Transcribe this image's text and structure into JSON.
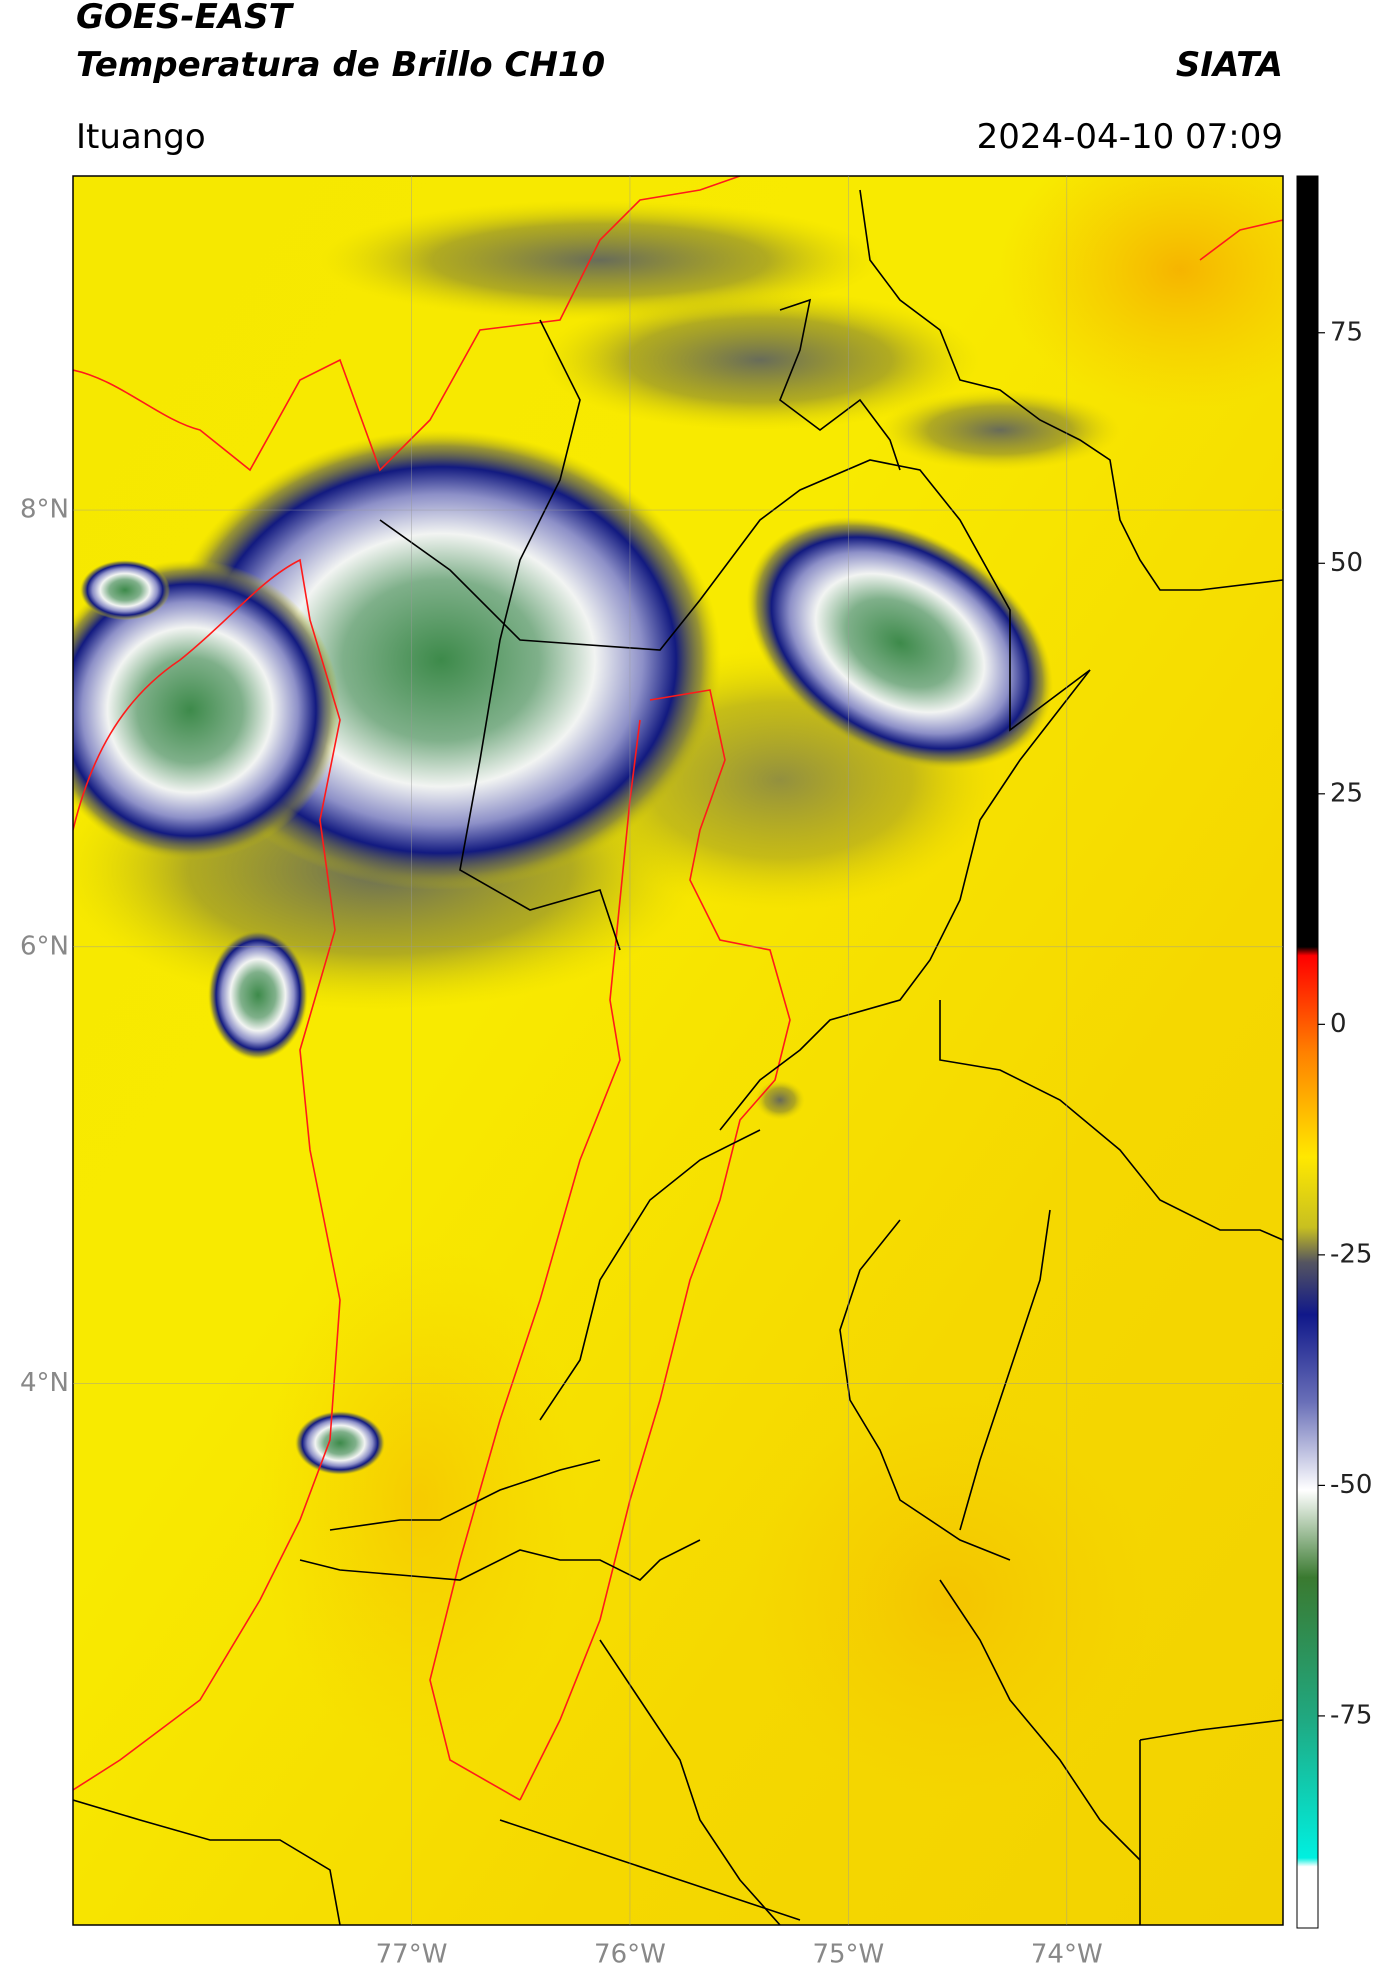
{
  "header": {
    "title": "GOES-EAST",
    "subtitle": "Temperatura de Brillo CH10",
    "brand": "SIATA",
    "location": "Ituango",
    "datetime": "2024-04-10 07:09"
  },
  "map": {
    "lonlim": [
      -78.55,
      -73.01
    ],
    "latlim": [
      1.52,
      9.53
    ],
    "lat_ticks": [
      {
        "value": 8,
        "label": "8°N"
      },
      {
        "value": 6,
        "label": "6°N"
      },
      {
        "value": 4,
        "label": "4°N"
      }
    ],
    "lon_ticks": [
      {
        "value": -77,
        "label": "77°W"
      },
      {
        "value": -76,
        "label": "76°W"
      },
      {
        "value": -75,
        "label": "75°W"
      },
      {
        "value": -74,
        "label": "74°W"
      }
    ]
  },
  "colorbar": {
    "range": [
      -98,
      92
    ],
    "ticks": [
      75,
      50,
      25,
      0,
      -25,
      -50,
      -75
    ]
  }
}
